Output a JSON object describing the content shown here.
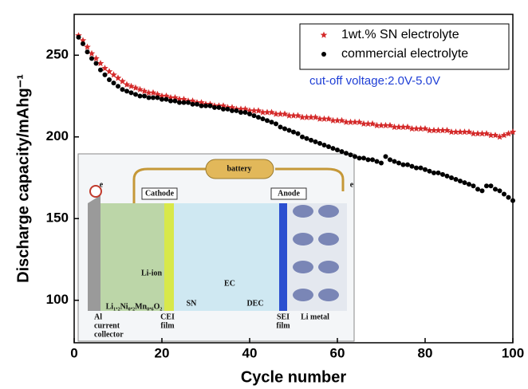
{
  "chart_data": {
    "type": "scatter",
    "x_label": "Cycle number",
    "y_label": "Discharge capacity/mAhg⁻¹",
    "annotation": "cut-off voltage:2.0V-5.0V",
    "legend": "upper right",
    "xlim": [
      0,
      100
    ],
    "ylim": [
      74,
      275
    ],
    "xticks": [
      0,
      20,
      40,
      60,
      80,
      100
    ],
    "yticks": [
      100,
      150,
      200,
      250
    ],
    "x": [
      1,
      2,
      3,
      4,
      5,
      6,
      7,
      8,
      9,
      10,
      11,
      12,
      13,
      14,
      15,
      16,
      17,
      18,
      19,
      20,
      21,
      22,
      23,
      24,
      25,
      26,
      27,
      28,
      29,
      30,
      31,
      32,
      33,
      34,
      35,
      36,
      37,
      38,
      39,
      40,
      41,
      42,
      43,
      44,
      45,
      46,
      47,
      48,
      49,
      50,
      51,
      52,
      53,
      54,
      55,
      56,
      57,
      58,
      59,
      60,
      61,
      62,
      63,
      64,
      65,
      66,
      67,
      68,
      69,
      70,
      71,
      72,
      73,
      74,
      75,
      76,
      77,
      78,
      79,
      80,
      81,
      82,
      83,
      84,
      85,
      86,
      87,
      88,
      89,
      90,
      91,
      92,
      93,
      94,
      95,
      96,
      97,
      98,
      99,
      100
    ],
    "series": [
      {
        "name": "1wt.% SN electrolyte",
        "color": "#d42a2a",
        "marker": "star",
        "values": [
          262,
          259,
          255,
          251,
          248,
          245,
          242,
          240,
          238,
          236,
          234,
          232,
          231,
          230,
          229,
          228,
          227,
          227,
          226,
          225,
          225,
          224,
          224,
          223,
          223,
          222,
          222,
          221,
          221,
          220,
          220,
          219,
          219,
          219,
          218,
          218,
          217,
          217,
          217,
          216,
          216,
          216,
          215,
          215,
          215,
          214,
          214,
          214,
          213,
          213,
          213,
          212,
          212,
          212,
          212,
          211,
          211,
          211,
          210,
          210,
          210,
          209,
          209,
          209,
          209,
          208,
          208,
          208,
          207,
          207,
          207,
          207,
          206,
          206,
          206,
          206,
          205,
          205,
          205,
          205,
          204,
          204,
          204,
          204,
          204,
          203,
          203,
          203,
          203,
          203,
          202,
          202,
          202,
          202,
          201,
          201,
          200,
          201,
          202,
          203
        ]
      },
      {
        "name": "commercial electrolyte",
        "color": "#000000",
        "marker": "circle",
        "values": [
          261,
          257,
          252,
          248,
          245,
          241,
          238,
          235,
          233,
          231,
          229,
          228,
          227,
          226,
          225,
          225,
          224,
          224,
          224,
          223,
          223,
          222,
          222,
          221,
          221,
          221,
          220,
          220,
          219,
          219,
          219,
          218,
          218,
          217,
          217,
          216,
          216,
          215,
          215,
          214,
          213,
          212,
          211,
          210,
          209,
          208,
          206,
          205,
          204,
          203,
          202,
          200,
          199,
          198,
          197,
          196,
          195,
          194,
          193,
          192,
          191,
          190,
          189,
          188,
          187,
          187,
          186,
          186,
          185,
          184,
          188,
          186,
          185,
          184,
          183,
          183,
          182,
          181,
          181,
          180,
          179,
          178,
          178,
          177,
          176,
          175,
          174,
          173,
          172,
          171,
          170,
          168,
          167,
          170,
          170,
          168,
          167,
          165,
          163,
          161
        ]
      }
    ],
    "inset": {
      "labels": [
        "battery",
        "Cathode",
        "Anode",
        "e",
        "e",
        "Li-ion",
        "Li₁.₂Ni₀.₂Mn₀.₆O₂",
        "Al",
        "current",
        "collector",
        "CEI",
        "film",
        "SN",
        "EC",
        "DEC",
        "SEI",
        "film",
        "Li metal"
      ]
    }
  }
}
